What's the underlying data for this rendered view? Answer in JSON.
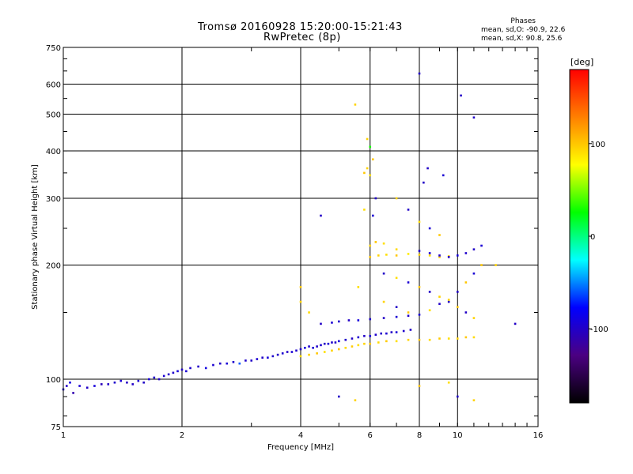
{
  "header": {
    "title_line1": "Tromsø 20160928 15:20:00-15:21:43",
    "title_line2": "RwPretec (8p)"
  },
  "phases_box": {
    "heading": "Phases",
    "line_o": "mean, sd,O: -90.9, 22.6",
    "line_x": "mean, sd,X:  90.8, 25.6"
  },
  "colorbar": {
    "unit_label": "[deg]",
    "ticks": [
      {
        "value": 100,
        "label": "100"
      },
      {
        "value": 0,
        "label": "0"
      },
      {
        "value": -100,
        "label": "-100"
      }
    ],
    "range": [
      -180,
      180
    ],
    "colormap": [
      "#000000",
      "#4b0082",
      "#0000ff",
      "#00ffff",
      "#00ff00",
      "#ffff00",
      "#ff8000",
      "#ff0000"
    ]
  },
  "chart_data": {
    "type": "scatter",
    "title": "Tromsø 20160928 15:20:00-15:21:43",
    "subtitle": "RwPretec (8p)",
    "xlabel": "Frequency [MHz]",
    "ylabel": "Stationary phase Virtual Height [km]",
    "x_scale": "log",
    "y_scale": "log",
    "xlim": [
      1,
      16
    ],
    "ylim": [
      75,
      750
    ],
    "x_ticks": [
      {
        "value": 1,
        "label": "1"
      },
      {
        "value": 2,
        "label": "2"
      },
      {
        "value": 4,
        "label": "4"
      },
      {
        "value": 6,
        "label": "6"
      },
      {
        "value": 8,
        "label": "8"
      },
      {
        "value": 10,
        "label": "10"
      },
      {
        "value": 16,
        "label": "16"
      }
    ],
    "y_ticks": [
      {
        "value": 75,
        "label": "75"
      },
      {
        "value": 100,
        "label": "100"
      },
      {
        "value": 200,
        "label": "200"
      },
      {
        "value": 300,
        "label": "300"
      },
      {
        "value": 400,
        "label": "400"
      },
      {
        "value": 500,
        "label": "500"
      },
      {
        "value": 600,
        "label": "600"
      },
      {
        "value": 750,
        "label": "750"
      }
    ],
    "grid": true,
    "color_by": "phase [deg]",
    "points": [
      [
        1.0,
        94,
        -95
      ],
      [
        1.02,
        96,
        -100
      ],
      [
        1.04,
        98,
        -90
      ],
      [
        1.06,
        92,
        -110
      ],
      [
        1.1,
        96,
        -95
      ],
      [
        1.15,
        95,
        -100
      ],
      [
        1.2,
        96,
        -92
      ],
      [
        1.25,
        97,
        -105
      ],
      [
        1.3,
        97,
        -100
      ],
      [
        1.35,
        98,
        -98
      ],
      [
        1.4,
        99,
        -95
      ],
      [
        1.45,
        98,
        -102
      ],
      [
        1.5,
        97,
        -100
      ],
      [
        1.55,
        99,
        -96
      ],
      [
        1.6,
        98,
        -100
      ],
      [
        1.65,
        100,
        -94
      ],
      [
        1.7,
        101,
        -98
      ],
      [
        1.75,
        100,
        -100
      ],
      [
        1.8,
        102,
        -96
      ],
      [
        1.85,
        103,
        -100
      ],
      [
        1.9,
        104,
        -98
      ],
      [
        1.95,
        105,
        -92
      ],
      [
        2.0,
        106,
        -100
      ],
      [
        2.05,
        105,
        -95
      ],
      [
        2.1,
        107,
        -98
      ],
      [
        2.2,
        108,
        -100
      ],
      [
        2.3,
        107,
        -90
      ],
      [
        2.4,
        109,
        -96
      ],
      [
        2.5,
        110,
        -100
      ],
      [
        2.6,
        110,
        -94
      ],
      [
        2.7,
        111,
        -98
      ],
      [
        2.8,
        110,
        -60
      ],
      [
        2.9,
        112,
        -98
      ],
      [
        3.0,
        112,
        -100
      ],
      [
        3.1,
        113,
        -95
      ],
      [
        3.2,
        114,
        -100
      ],
      [
        3.3,
        114,
        -92
      ],
      [
        3.4,
        115,
        -98
      ],
      [
        3.5,
        116,
        -100
      ],
      [
        3.6,
        117,
        -96
      ],
      [
        3.7,
        118,
        -100
      ],
      [
        3.8,
        118,
        -94
      ],
      [
        3.9,
        119,
        -98
      ],
      [
        4.0,
        120,
        -100
      ],
      [
        4.1,
        121,
        -92
      ],
      [
        4.2,
        122,
        -98
      ],
      [
        4.3,
        121,
        -95
      ],
      [
        4.4,
        122,
        -100
      ],
      [
        4.5,
        123,
        -96
      ],
      [
        4.6,
        124,
        -100
      ],
      [
        4.7,
        124,
        -94
      ],
      [
        4.8,
        125,
        -98
      ],
      [
        4.9,
        125,
        -100
      ],
      [
        5.0,
        126,
        -92
      ],
      [
        5.2,
        127,
        -98
      ],
      [
        5.4,
        128,
        -100
      ],
      [
        5.6,
        129,
        -96
      ],
      [
        5.8,
        130,
        -100
      ],
      [
        6.0,
        130,
        -92
      ],
      [
        6.2,
        131,
        -98
      ],
      [
        6.4,
        132,
        -100
      ],
      [
        6.6,
        132,
        -96
      ],
      [
        6.8,
        133,
        -100
      ],
      [
        7.0,
        133,
        -94
      ],
      [
        7.3,
        134,
        -98
      ],
      [
        7.6,
        135,
        -100
      ],
      [
        4.0,
        115,
        90
      ],
      [
        4.2,
        116,
        95
      ],
      [
        4.4,
        117,
        100
      ],
      [
        4.6,
        118,
        90
      ],
      [
        4.8,
        119,
        95
      ],
      [
        5.0,
        120,
        100
      ],
      [
        5.2,
        121,
        92
      ],
      [
        5.4,
        122,
        98
      ],
      [
        5.6,
        123,
        90
      ],
      [
        5.8,
        124,
        95
      ],
      [
        6.0,
        124,
        100
      ],
      [
        6.3,
        125,
        92
      ],
      [
        6.6,
        126,
        98
      ],
      [
        7.0,
        126,
        90
      ],
      [
        7.5,
        127,
        95
      ],
      [
        8.0,
        127,
        100
      ],
      [
        8.5,
        127,
        92
      ],
      [
        9.0,
        128,
        98
      ],
      [
        9.5,
        128,
        90
      ],
      [
        10.0,
        128,
        95
      ],
      [
        10.5,
        129,
        100
      ],
      [
        11.0,
        129,
        92
      ],
      [
        4.5,
        140,
        -100
      ],
      [
        4.8,
        141,
        -95
      ],
      [
        5.0,
        142,
        -98
      ],
      [
        5.3,
        143,
        -100
      ],
      [
        5.6,
        143,
        -92
      ],
      [
        6.0,
        144,
        -98
      ],
      [
        6.5,
        145,
        -100
      ],
      [
        7.0,
        146,
        -95
      ],
      [
        7.5,
        147,
        -100
      ],
      [
        6.0,
        210,
        100
      ],
      [
        6.3,
        212,
        95
      ],
      [
        6.6,
        213,
        90
      ],
      [
        7.0,
        212,
        100
      ],
      [
        7.5,
        214,
        85
      ],
      [
        8.0,
        213,
        95
      ],
      [
        8.5,
        212,
        90
      ],
      [
        9.0,
        210,
        100
      ],
      [
        9.5,
        211,
        95
      ],
      [
        6.0,
        225,
        95
      ],
      [
        6.2,
        230,
        100
      ],
      [
        6.5,
        228,
        90
      ],
      [
        7.0,
        220,
        92
      ],
      [
        8.0,
        218,
        -100
      ],
      [
        8.5,
        215,
        -95
      ],
      [
        9.0,
        212,
        -98
      ],
      [
        9.5,
        210,
        -100
      ],
      [
        10.0,
        212,
        -92
      ],
      [
        10.5,
        215,
        -98
      ],
      [
        11.0,
        220,
        -100
      ],
      [
        11.5,
        225,
        -95
      ],
      [
        5.8,
        350,
        100
      ],
      [
        5.9,
        360,
        95
      ],
      [
        6.0,
        345,
        90
      ],
      [
        6.1,
        380,
        100
      ],
      [
        6.0,
        410,
        30
      ],
      [
        5.9,
        430,
        95
      ],
      [
        6.2,
        300,
        -100
      ],
      [
        6.1,
        270,
        -95
      ],
      [
        5.8,
        280,
        90
      ],
      [
        7.0,
        300,
        95
      ],
      [
        7.5,
        280,
        -100
      ],
      [
        8.0,
        260,
        90
      ],
      [
        8.5,
        250,
        -95
      ],
      [
        9.0,
        240,
        100
      ],
      [
        8.2,
        330,
        -100
      ],
      [
        8.4,
        360,
        -100
      ],
      [
        9.2,
        345,
        -95
      ],
      [
        6.5,
        190,
        -100
      ],
      [
        7.0,
        185,
        90
      ],
      [
        7.5,
        180,
        -95
      ],
      [
        8.0,
        175,
        100
      ],
      [
        8.5,
        170,
        -100
      ],
      [
        9.0,
        165,
        95
      ],
      [
        9.5,
        160,
        -100
      ],
      [
        10.0,
        155,
        100
      ],
      [
        10.5,
        150,
        -100
      ],
      [
        11.0,
        145,
        95
      ],
      [
        6.5,
        160,
        95
      ],
      [
        7.0,
        155,
        -100
      ],
      [
        7.5,
        150,
        100
      ],
      [
        8.0,
        148,
        -95
      ],
      [
        8.5,
        152,
        90
      ],
      [
        9.0,
        158,
        -100
      ],
      [
        9.5,
        162,
        95
      ],
      [
        10.0,
        170,
        -100
      ],
      [
        10.5,
        180,
        100
      ],
      [
        11.0,
        190,
        -95
      ],
      [
        11.5,
        200,
        100
      ],
      [
        8.0,
        640,
        -100
      ],
      [
        10.2,
        560,
        -100
      ],
      [
        11.0,
        490,
        -100
      ],
      [
        5.5,
        530,
        95
      ],
      [
        4.5,
        270,
        -100
      ],
      [
        12.5,
        200,
        95
      ],
      [
        14.0,
        140,
        -100
      ],
      [
        5.0,
        90,
        -100
      ],
      [
        5.5,
        88,
        95
      ],
      [
        10.0,
        90,
        -100
      ],
      [
        11.0,
        88,
        95
      ],
      [
        8.0,
        96,
        100
      ],
      [
        9.5,
        98,
        90
      ],
      [
        4.0,
        160,
        95
      ],
      [
        4.2,
        150,
        92
      ],
      [
        4.0,
        175,
        98
      ],
      [
        5.6,
        175,
        90
      ]
    ]
  }
}
